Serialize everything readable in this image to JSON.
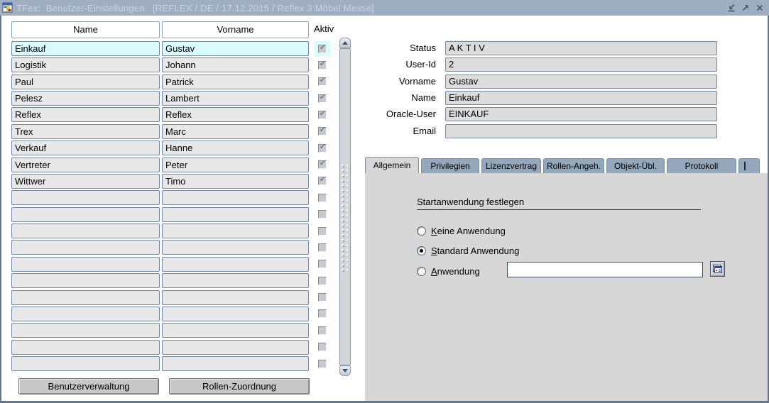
{
  "window": {
    "title": "TFex:  Benutzer-Einstellungen   [REFLEX / DE / 17.12.2015 / Reflex 3 Möbel Messe]",
    "controls": [
      {
        "name": "minimize-icon"
      },
      {
        "name": "restore-icon"
      },
      {
        "name": "close-icon"
      }
    ]
  },
  "user_table": {
    "columns": [
      "Name",
      "Vorname"
    ],
    "aktiv_header": "Aktiv",
    "rows": [
      {
        "name": "Einkauf",
        "vorname": "Gustav",
        "aktiv": true,
        "selected": true
      },
      {
        "name": "Logistik",
        "vorname": "Johann",
        "aktiv": true
      },
      {
        "name": "Paul",
        "vorname": "Patrick",
        "aktiv": true
      },
      {
        "name": "Pelesz",
        "vorname": "Lambert",
        "aktiv": true
      },
      {
        "name": "Reflex",
        "vorname": "Reflex",
        "aktiv": true
      },
      {
        "name": "Trex",
        "vorname": "Marc",
        "aktiv": true
      },
      {
        "name": "Verkauf",
        "vorname": "Hanne",
        "aktiv": true
      },
      {
        "name": "Vertreter",
        "vorname": "Peter",
        "aktiv": true
      },
      {
        "name": "Wittwer",
        "vorname": "Timo",
        "aktiv": true
      }
    ],
    "empty_rows": 11
  },
  "actions": {
    "benutzerverwaltung": "Benutzerverwaltung",
    "rollen_zuordnung": "Rollen-Zuordnung"
  },
  "detail": {
    "fields": [
      {
        "label": "Status",
        "value": "A K T I V"
      },
      {
        "label": "User-Id",
        "value": "2"
      },
      {
        "label": "Vorname",
        "value": "Gustav"
      },
      {
        "label": "Name",
        "value": "Einkauf"
      },
      {
        "label": "Oracle-User",
        "value": "EINKAUF"
      },
      {
        "label": "Email",
        "value": ""
      }
    ]
  },
  "tabs": {
    "active": "Allgemein",
    "items": [
      "Allgemein",
      "Privilegien",
      "Lizenzvertrag",
      "Rollen-Angeh.",
      "Objekt-Übl.",
      "Protokoll"
    ]
  },
  "allgemein_tab": {
    "section_title": "Startanwendung festlegen",
    "options": [
      {
        "label": "Keine Anwendung",
        "selected": false
      },
      {
        "label": "Standard Anwendung",
        "selected": true
      },
      {
        "label": "Anwendung",
        "selected": false,
        "input_value": ""
      }
    ]
  },
  "colors": {
    "titlebar": "#9fafc1",
    "tab_inactive": "#95a7ba",
    "panel": "#d7d7d7",
    "selected_row": "#d9fbfc",
    "field_fill": "#dcdcdc",
    "row_fill": "#e8e8e8"
  }
}
